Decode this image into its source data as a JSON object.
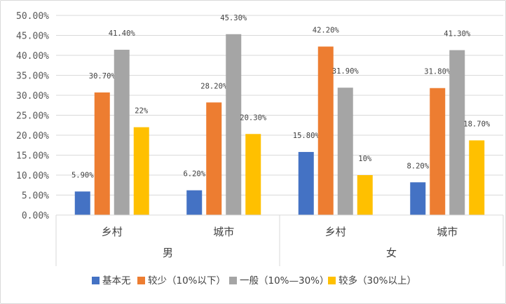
{
  "chart_data": {
    "type": "bar",
    "ylim": [
      0,
      50
    ],
    "y_ticks": [
      "0.00%",
      "5.00%",
      "10.00%",
      "15.00%",
      "20.00%",
      "25.00%",
      "30.00%",
      "35.00%",
      "40.00%",
      "45.00%",
      "50.00%"
    ],
    "groups": [
      {
        "label": "男",
        "categories": [
          "乡村",
          "城市"
        ]
      },
      {
        "label": "女",
        "categories": [
          "乡村",
          "城市"
        ]
      }
    ],
    "categories": [
      "男·乡村",
      "男·城市",
      "女·乡村",
      "女·城市"
    ],
    "series": [
      {
        "name": "基本无",
        "color": "#4472C4",
        "values": [
          5.9,
          6.2,
          15.8,
          8.2
        ],
        "labels": [
          "5.90%",
          "6.20%",
          "15.80%",
          "8.20%"
        ]
      },
      {
        "name": "较少（10%以下）",
        "color": "#ED7D31",
        "values": [
          30.7,
          28.2,
          42.2,
          31.8
        ],
        "labels": [
          "30.70%",
          "28.20%",
          "42.20%",
          "31.80%"
        ]
      },
      {
        "name": "一般（10%—30%）",
        "color": "#A5A5A5",
        "values": [
          41.4,
          45.3,
          31.9,
          41.3
        ],
        "labels": [
          "41.40%",
          "45.30%",
          "31.90%",
          "41.30%"
        ]
      },
      {
        "name": "较多（30%以上）",
        "color": "#FFC000",
        "values": [
          22,
          20.3,
          10,
          18.7
        ],
        "labels": [
          "22%",
          "20.30%",
          "10%",
          "18.70%"
        ]
      }
    ],
    "grid": true,
    "legend_position": "bottom"
  }
}
